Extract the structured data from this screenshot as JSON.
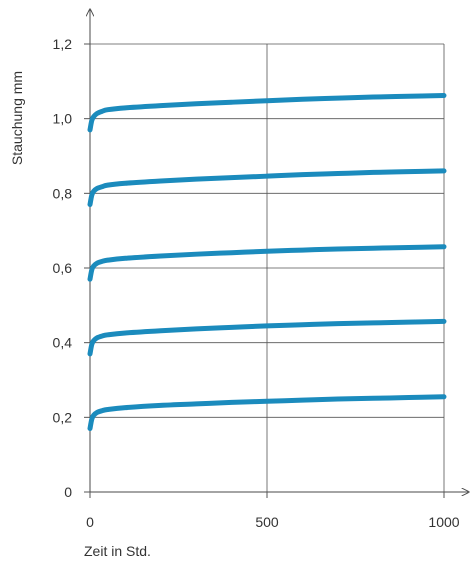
{
  "chart_data": {
    "type": "line",
    "title": "",
    "xlabel": "Zeit in Std.",
    "ylabel": "Stauchung  mm",
    "xlim": [
      0,
      1000
    ],
    "ylim": [
      0,
      1.2
    ],
    "x_ticks": [
      0,
      500,
      1000
    ],
    "x_tick_labels": [
      "0",
      "500",
      "1000"
    ],
    "y_ticks": [
      0,
      0.2,
      0.4,
      0.6,
      0.8,
      1.0,
      1.2
    ],
    "y_tick_labels": [
      "0",
      "0,2",
      "0,4",
      "0,6",
      "0,8",
      "1,0",
      "1,2"
    ],
    "grid": true,
    "legend": "none",
    "series_color": "#1b8bbd",
    "series": [
      {
        "x": [
          0,
          5,
          10,
          20,
          35,
          50,
          100,
          200,
          300,
          400,
          500,
          600,
          700,
          800,
          900,
          1000
        ],
        "values": [
          0.17,
          0.195,
          0.205,
          0.213,
          0.218,
          0.221,
          0.226,
          0.232,
          0.236,
          0.24,
          0.243,
          0.246,
          0.249,
          0.251,
          0.253,
          0.255
        ]
      },
      {
        "x": [
          0,
          5,
          10,
          20,
          35,
          50,
          100,
          200,
          300,
          400,
          500,
          600,
          700,
          800,
          900,
          1000
        ],
        "values": [
          0.37,
          0.395,
          0.405,
          0.413,
          0.418,
          0.421,
          0.426,
          0.432,
          0.437,
          0.441,
          0.445,
          0.448,
          0.451,
          0.453,
          0.455,
          0.457
        ]
      },
      {
        "x": [
          0,
          5,
          10,
          20,
          35,
          50,
          100,
          200,
          300,
          400,
          500,
          600,
          700,
          800,
          900,
          1000
        ],
        "values": [
          0.57,
          0.595,
          0.605,
          0.613,
          0.618,
          0.621,
          0.626,
          0.632,
          0.637,
          0.641,
          0.645,
          0.648,
          0.651,
          0.653,
          0.655,
          0.657
        ]
      },
      {
        "x": [
          0,
          5,
          10,
          20,
          35,
          50,
          100,
          200,
          300,
          400,
          500,
          600,
          700,
          800,
          900,
          1000
        ],
        "values": [
          0.77,
          0.795,
          0.805,
          0.813,
          0.818,
          0.822,
          0.827,
          0.833,
          0.838,
          0.842,
          0.846,
          0.85,
          0.853,
          0.856,
          0.858,
          0.86
        ]
      },
      {
        "x": [
          0,
          5,
          10,
          20,
          35,
          50,
          100,
          200,
          300,
          400,
          500,
          600,
          700,
          800,
          900,
          1000
        ],
        "values": [
          0.97,
          0.995,
          1.005,
          1.014,
          1.02,
          1.024,
          1.029,
          1.035,
          1.04,
          1.044,
          1.048,
          1.052,
          1.055,
          1.058,
          1.06,
          1.062
        ]
      }
    ]
  }
}
